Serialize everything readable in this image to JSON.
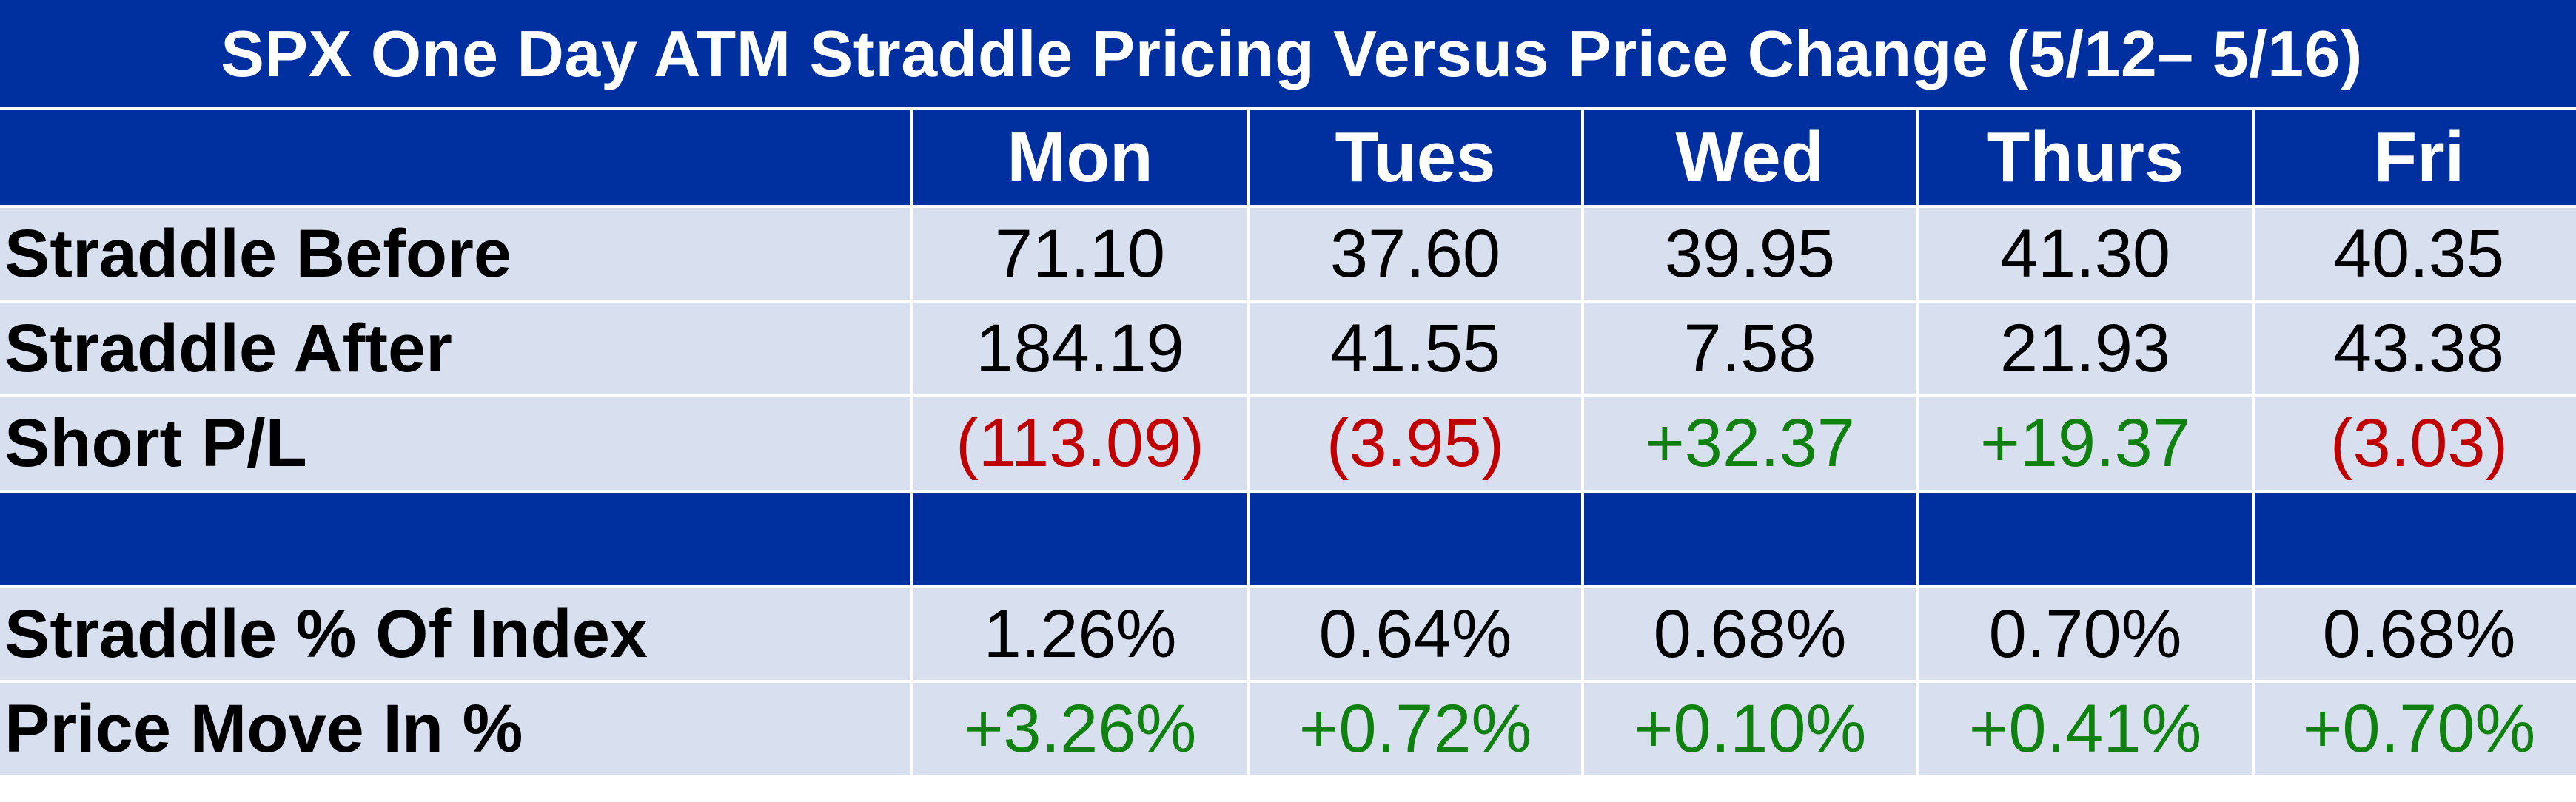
{
  "title": "SPX One Day ATM Straddle Pricing Versus Price Change (5/12– 5/16)",
  "columns": [
    "Mon",
    "Tues",
    "Wed",
    "Thurs",
    "Fri"
  ],
  "rows": {
    "straddle_before": {
      "label": "Straddle Before",
      "values": [
        "71.10",
        "37.60",
        "39.95",
        "41.30",
        "40.35"
      ]
    },
    "straddle_after": {
      "label": "Straddle After",
      "values": [
        "184.19",
        "41.55",
        "7.58",
        "21.93",
        "43.38"
      ]
    },
    "short_pl": {
      "label": "Short P/L",
      "values": [
        "(113.09)",
        "(3.95)",
        "+32.37",
        "+19.37",
        "(3.03)"
      ]
    },
    "straddle_pct": {
      "label": "Straddle % Of Index",
      "values": [
        "1.26%",
        "0.64%",
        "0.68%",
        "0.70%",
        "0.68%"
      ]
    },
    "price_move": {
      "label": "Price Move In %",
      "values": [
        "+3.26%",
        "+0.72%",
        "+0.10%",
        "+0.41%",
        "+0.70%"
      ]
    }
  },
  "colors": {
    "header_blue": "#0030a0",
    "row_fill": "#d8e0f0",
    "negative": "#c00000",
    "positive": "#108010"
  }
}
